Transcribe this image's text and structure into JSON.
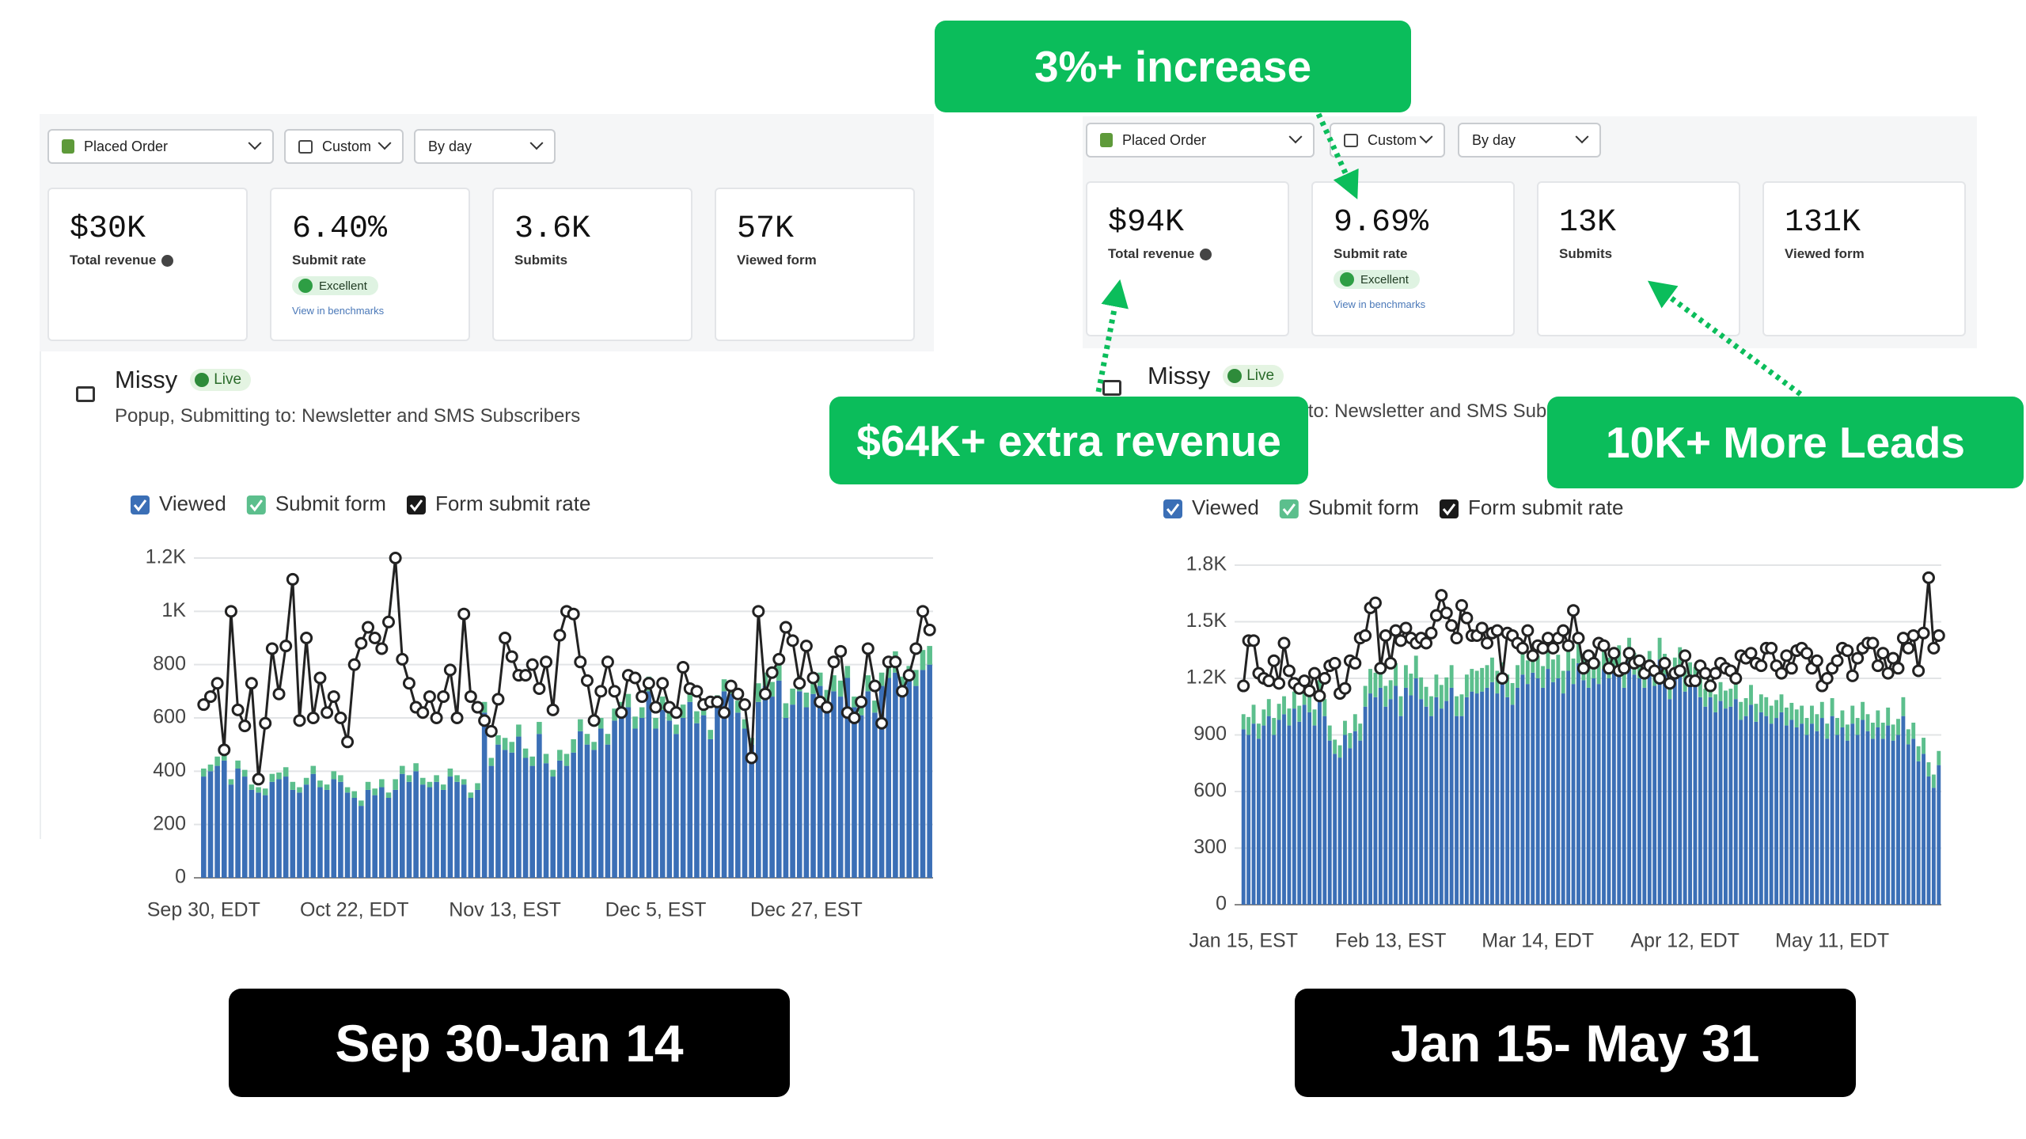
{
  "panels": [
    {
      "dropdowns": [
        "Placed Order",
        "Custom",
        "By day"
      ],
      "metrics": [
        {
          "value": "$30K",
          "label": "Total revenue"
        },
        {
          "value": "6.40%",
          "label": "Submit rate",
          "badge": "Excellent",
          "link": "View in benchmarks"
        },
        {
          "value": "3.6K",
          "label": "Submits"
        },
        {
          "value": "57K",
          "label": "Viewed form"
        }
      ],
      "form_name": "Missy",
      "status": "Live",
      "subtitle": "Popup, Submitting to: Newsletter and SMS Subscribers",
      "period": "Sep 30-Jan 14"
    },
    {
      "dropdowns": [
        "Placed Order",
        "Custom",
        "By day"
      ],
      "metrics": [
        {
          "value": "$94K",
          "label": "Total revenue"
        },
        {
          "value": "9.69%",
          "label": "Submit rate",
          "badge": "Excellent",
          "link": "View in benchmarks"
        },
        {
          "value": "13K",
          "label": "Submits"
        },
        {
          "value": "131K",
          "label": "Viewed form"
        }
      ],
      "form_name": "Missy",
      "status": "Live",
      "subtitle": "Popup, Submitting to: Newsletter and SMS Subscribers",
      "period": "Jan 15- May 31"
    }
  ],
  "annotations": [
    "3%+ increase",
    "$64K+ extra revenue",
    "10K+ More Leads"
  ],
  "chart_data": [
    {
      "type": "bar",
      "stacked": true,
      "grid": true,
      "categories": [
        "Sep 30, EDT",
        null,
        null,
        null,
        null,
        null,
        null,
        null,
        null,
        null,
        null,
        null,
        null,
        null,
        null,
        null,
        null,
        null,
        null,
        null,
        null,
        null,
        "Oct 22, EDT",
        null,
        null,
        null,
        null,
        null,
        null,
        null,
        null,
        null,
        null,
        null,
        null,
        null,
        null,
        null,
        null,
        null,
        null,
        null,
        null,
        null,
        "Nov 13, EST",
        null,
        null,
        null,
        null,
        null,
        null,
        null,
        null,
        null,
        null,
        null,
        null,
        null,
        null,
        null,
        null,
        null,
        null,
        null,
        null,
        null,
        "Dec 5, EST",
        null,
        null,
        null,
        null,
        null,
        null,
        null,
        null,
        null,
        null,
        null,
        null,
        null,
        null,
        null,
        null,
        null,
        null,
        null,
        null,
        null,
        "Dec 27, EST",
        null,
        null,
        null,
        null,
        null,
        null,
        null,
        null,
        null,
        null,
        null,
        null,
        null,
        null,
        null,
        null,
        null,
        null
      ],
      "series": [
        {
          "name": "Viewed",
          "color": "#3b6fb6",
          "values": [
            380,
            400,
            420,
            440,
            350,
            410,
            380,
            330,
            320,
            310,
            360,
            370,
            380,
            330,
            320,
            350,
            390,
            340,
            330,
            370,
            360,
            320,
            300,
            270,
            330,
            310,
            340,
            300,
            330,
            390,
            360,
            400,
            350,
            340,
            360,
            330,
            380,
            360,
            350,
            300,
            330,
            620,
            420,
            500,
            480,
            470,
            530,
            450,
            420,
            540,
            430,
            380,
            440,
            420,
            470,
            550,
            500,
            480,
            560,
            500,
            590,
            620,
            640,
            560,
            600,
            700,
            560,
            630,
            590,
            540,
            600,
            660,
            580,
            610,
            520,
            640,
            700,
            690,
            620,
            560,
            500,
            660,
            720,
            680,
            740,
            600,
            650,
            700,
            640,
            690,
            720,
            660,
            700,
            680,
            750,
            640,
            610,
            700,
            620,
            720,
            750,
            770,
            700,
            740,
            720,
            780,
            800
          ]
        },
        {
          "name": "Submit form",
          "color": "#5cbf8d",
          "values": [
            30,
            25,
            35,
            40,
            20,
            30,
            25,
            20,
            20,
            25,
            30,
            25,
            35,
            30,
            20,
            25,
            30,
            25,
            20,
            30,
            25,
            20,
            25,
            20,
            30,
            25,
            30,
            20,
            40,
            30,
            25,
            30,
            25,
            20,
            25,
            20,
            30,
            25,
            20,
            20,
            25,
            40,
            30,
            35,
            45,
            40,
            45,
            35,
            35,
            45,
            35,
            25,
            40,
            45,
            50,
            45,
            40,
            30,
            40,
            40,
            45,
            40,
            50,
            45,
            40,
            55,
            40,
            50,
            40,
            35,
            50,
            50,
            45,
            40,
            35,
            45,
            45,
            50,
            45,
            35,
            25,
            70,
            50,
            55,
            60,
            55,
            60,
            55,
            55,
            50,
            50,
            45,
            60,
            60,
            45,
            40,
            45,
            60,
            45,
            50,
            60,
            80,
            55,
            55,
            60,
            75,
            70
          ]
        },
        {
          "name": "Form submit rate",
          "type": "line",
          "axis": "y2",
          "color": "#222222",
          "values": [
            6.5,
            6.8,
            7.3,
            4.8,
            10.0,
            6.3,
            5.7,
            7.3,
            3.7,
            5.8,
            8.6,
            6.9,
            8.7,
            11.2,
            5.9,
            9.0,
            6.0,
            7.5,
            6.2,
            6.8,
            6.0,
            5.1,
            8.0,
            8.8,
            9.4,
            9.0,
            8.6,
            9.6,
            12.0,
            8.2,
            7.3,
            6.4,
            6.2,
            6.8,
            6.0,
            6.8,
            7.8,
            6.0,
            9.9,
            6.8,
            6.4,
            5.9,
            5.5,
            6.7,
            9.0,
            8.3,
            7.6,
            7.6,
            8.0,
            7.1,
            8.1,
            6.3,
            9.1,
            10.0,
            9.9,
            8.1,
            7.4,
            5.9,
            7.0,
            8.1,
            7.0,
            6.2,
            7.6,
            7.5,
            6.8,
            7.3,
            6.4,
            7.3,
            6.4,
            6.2,
            7.9,
            7.1,
            7.0,
            6.5,
            6.6,
            6.6,
            6.2,
            7.2,
            6.9,
            6.5,
            4.5,
            10.0,
            6.9,
            7.7,
            8.2,
            9.4,
            8.9,
            7.3,
            8.7,
            7.5,
            6.6,
            6.4,
            8.1,
            8.5,
            6.2,
            6.0,
            6.6,
            8.6,
            7.2,
            5.8,
            8.1,
            8.1,
            7.0,
            7.6,
            8.6,
            10.0,
            9.3
          ]
        }
      ],
      "ylim": [
        0,
        1200
      ],
      "yticks": [
        0,
        200,
        400,
        600,
        800,
        {
          "value": 1000,
          "label": "1K"
        },
        {
          "value": 1200,
          "label": "1.2K"
        }
      ],
      "y2lim": [
        0,
        12
      ]
    },
    {
      "type": "bar",
      "stacked": true,
      "grid": true,
      "categories": [
        "Jan 15, EST",
        null,
        null,
        null,
        null,
        null,
        null,
        null,
        null,
        null,
        null,
        null,
        null,
        null,
        null,
        null,
        null,
        null,
        null,
        null,
        null,
        null,
        null,
        null,
        null,
        null,
        null,
        null,
        null,
        "Feb 13, EST",
        null,
        null,
        null,
        null,
        null,
        null,
        null,
        null,
        null,
        null,
        null,
        null,
        null,
        null,
        null,
        null,
        null,
        null,
        null,
        null,
        null,
        null,
        null,
        null,
        null,
        null,
        null,
        null,
        "Mar 14, EDT",
        null,
        null,
        null,
        null,
        null,
        null,
        null,
        null,
        null,
        null,
        null,
        null,
        null,
        null,
        null,
        null,
        null,
        null,
        null,
        null,
        null,
        null,
        null,
        null,
        null,
        null,
        null,
        null,
        "Apr 12, EDT",
        null,
        null,
        null,
        null,
        null,
        null,
        null,
        null,
        null,
        null,
        null,
        null,
        null,
        null,
        null,
        null,
        null,
        null,
        null,
        null,
        null,
        null,
        null,
        null,
        null,
        null,
        null,
        null,
        "May 11, EDT",
        null,
        null,
        null,
        null,
        null,
        null,
        null,
        null,
        null,
        null,
        null,
        null,
        null,
        null,
        null,
        null,
        null,
        null,
        null,
        null,
        null
      ],
      "series": [
        {
          "name": "Viewed",
          "color": "#3b6fb6",
          "values": [
            930,
            900,
            960,
            880,
            950,
            1000,
            900,
            980,
            1010,
            950,
            1040,
            970,
            1060,
            1020,
            950,
            1100,
            1000,
            870,
            800,
            780,
            900,
            830,
            920,
            870,
            1050,
            1120,
            1100,
            1150,
            1050,
            1090,
            1160,
            1000,
            1150,
            1110,
            1200,
            1090,
            1050,
            1000,
            1100,
            1040,
            1080,
            1150,
            1000,
            1000,
            1100,
            1130,
            1120,
            1130,
            1150,
            1180,
            1120,
            1180,
            1100,
            1060,
            1150,
            1220,
            1170,
            1230,
            1200,
            1150,
            1250,
            1180,
            1200,
            1120,
            1240,
            1170,
            1280,
            1190,
            1150,
            1200,
            1170,
            1250,
            1200,
            1230,
            1260,
            1150,
            1290,
            1220,
            1200,
            1150,
            1230,
            1160,
            1300,
            1220,
            1090,
            1200,
            1250,
            1130,
            1180,
            1160,
            1100,
            1050,
            1100,
            1020,
            1080,
            1040,
            1050,
            1090,
            980,
            1000,
            1060,
            970,
            1020,
            1000,
            960,
            990,
            1020,
            950,
            980,
            940,
            960,
            900,
            960,
            920,
            990,
            880,
            1000,
            900,
            940,
            870,
            960,
            900,
            980,
            920,
            880,
            940,
            880,
            950,
            870,
            900,
            1000,
            850,
            880,
            760,
            800,
            680,
            620,
            740
          ]
        },
        {
          "name": "Submit form",
          "color": "#5cbf8d",
          "values": [
            80,
            95,
            100,
            80,
            85,
            90,
            90,
            85,
            95,
            90,
            90,
            85,
            95,
            85,
            85,
            90,
            90,
            80,
            75,
            65,
            75,
            80,
            90,
            90,
            110,
            130,
            130,
            100,
            110,
            100,
            120,
            105,
            120,
            115,
            120,
            115,
            105,
            105,
            120,
            125,
            125,
            120,
            105,
            115,
            120,
            120,
            120,
            125,
            120,
            130,
            120,
            105,
            120,
            115,
            120,
            125,
            125,
            120,
            120,
            115,
            130,
            120,
            125,
            120,
            125,
            135,
            130,
            110,
            115,
            115,
            120,
            125,
            110,
            120,
            115,
            110,
            125,
            115,
            115,
            105,
            115,
            105,
            115,
            110,
            95,
            110,
            115,
            110,
            105,
            100,
            105,
            95,
            95,
            95,
            100,
            95,
            95,
            95,
            95,
            95,
            105,
            95,
            95,
            100,
            95,
            95,
            95,
            95,
            90,
            95,
            95,
            90,
            95,
            90,
            85,
            80,
            95,
            90,
            90,
            85,
            95,
            90,
            95,
            90,
            85,
            90,
            85,
            95,
            85,
            85,
            100,
            80,
            85,
            80,
            85,
            75,
            70,
            75
          ]
        },
        {
          "name": "Form submit rate",
          "type": "line",
          "axis": "y2",
          "color": "#222222",
          "values": [
            8.7,
            10.5,
            10.5,
            9.2,
            9.0,
            8.9,
            9.7,
            8.8,
            10.4,
            9.3,
            8.8,
            8.6,
            8.9,
            8.5,
            9.2,
            8.3,
            9.0,
            9.5,
            9.6,
            8.4,
            8.6,
            9.7,
            9.6,
            10.6,
            10.7,
            11.8,
            12.0,
            9.4,
            10.7,
            9.6,
            10.9,
            10.5,
            11.0,
            10.6,
            10.4,
            10.6,
            10.4,
            10.8,
            11.5,
            12.3,
            11.6,
            11.1,
            10.6,
            11.9,
            11.4,
            10.7,
            10.7,
            11.0,
            10.4,
            10.8,
            10.9,
            9.0,
            10.8,
            10.7,
            10.4,
            10.2,
            10.9,
            9.9,
            10.3,
            10.2,
            10.6,
            10.2,
            10.6,
            10.9,
            10.3,
            11.7,
            10.6,
            9.4,
            9.9,
            9.6,
            10.4,
            10.3,
            9.4,
            10.0,
            9.3,
            9.4,
            10.0,
            9.6,
            9.7,
            9.2,
            9.5,
            9.3,
            9.0,
            9.6,
            8.8,
            9.2,
            9.3,
            9.9,
            8.9,
            8.9,
            9.5,
            9.2,
            8.7,
            9.2,
            9.6,
            9.4,
            9.3,
            9.0,
            9.9,
            9.8,
            10.0,
            9.6,
            9.5,
            10.2,
            10.2,
            9.5,
            9.2,
            9.9,
            9.4,
            10.1,
            10.2,
            10.0,
            9.4,
            9.7,
            8.7,
            9.0,
            9.4,
            9.7,
            10.2,
            10.1,
            9.1,
            9.8,
            10.2,
            10.4,
            10.4,
            9.5,
            10.0,
            9.2,
            9.8,
            9.4,
            10.6,
            10.2,
            10.7,
            9.3,
            10.8,
            13.0,
            10.2,
            10.7
          ]
        }
      ],
      "ylim": [
        0,
        1800
      ],
      "yticks": [
        0,
        300,
        600,
        900,
        {
          "value": 1200,
          "label": "1.2K"
        },
        {
          "value": 1500,
          "label": "1.5K"
        },
        {
          "value": 1800,
          "label": "1.8K"
        }
      ],
      "y2lim": [
        0,
        13.5
      ]
    }
  ]
}
